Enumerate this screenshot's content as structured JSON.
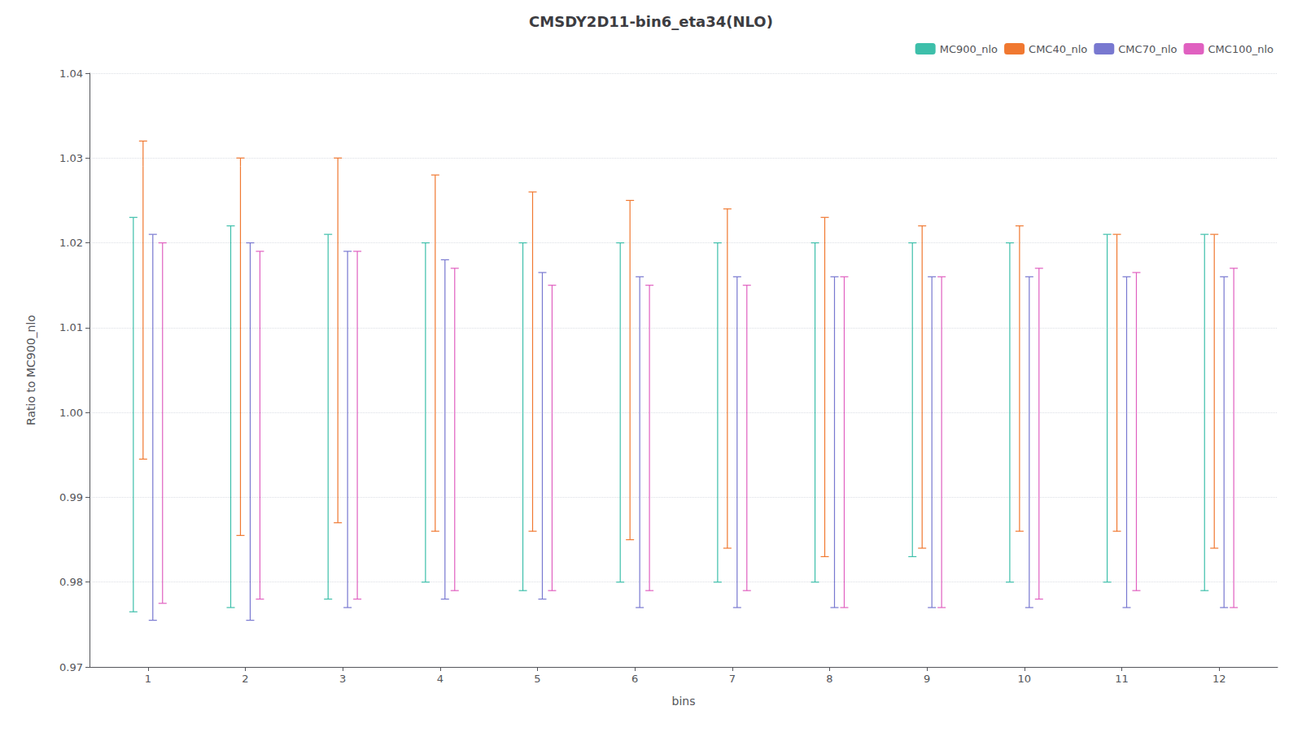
{
  "chart_data": {
    "type": "errorbar",
    "title": "CMSDY2D11-bin6_eta34(NLO)",
    "xlabel": "bins",
    "ylabel": "Ratio to MC900_nlo",
    "x": [
      1,
      2,
      3,
      4,
      5,
      6,
      7,
      8,
      9,
      10,
      11,
      12
    ],
    "xlim": [
      0.4,
      12.6
    ],
    "xticks": [
      1,
      2,
      3,
      4,
      5,
      6,
      7,
      8,
      9,
      10,
      11,
      12
    ],
    "ylim": [
      0.97,
      1.04
    ],
    "yticks": [
      0.97,
      0.98,
      0.99,
      {
        "value": 1,
        "label": "1.00"
      },
      1.01,
      1.02,
      1.03,
      1.04
    ],
    "grid": true,
    "legend": "upper right",
    "series": [
      {
        "name": "MC900_nlo",
        "color": "#3dbfaa",
        "values": [
          1.023,
          1.022,
          1.021,
          1.02,
          1.02,
          1.02,
          1.02,
          1.02,
          1.02,
          1.02,
          1.021,
          1.021
        ],
        "upper": [
          1.023,
          1.022,
          1.021,
          1.02,
          1.02,
          1.02,
          1.02,
          1.02,
          1.02,
          1.02,
          1.021,
          1.021
        ],
        "lower": [
          0.9765,
          0.977,
          0.978,
          0.98,
          0.979,
          0.98,
          0.98,
          0.98,
          0.983,
          0.98,
          0.98,
          0.979
        ]
      },
      {
        "name": "CMC40_nlo",
        "color": "#f07830",
        "values": [
          1.029,
          1.029,
          1.03,
          1.028,
          1.026,
          1.025,
          1.024,
          1.023,
          1.022,
          1.022,
          1.021,
          1.021
        ],
        "upper": [
          1.032,
          1.03,
          1.03,
          1.028,
          1.026,
          1.025,
          1.024,
          1.023,
          1.022,
          1.022,
          1.021,
          1.021
        ],
        "lower": [
          0.9945,
          0.9855,
          0.987,
          0.986,
          0.986,
          0.985,
          0.984,
          0.983,
          0.984,
          0.986,
          0.986,
          0.984
        ]
      },
      {
        "name": "CMC70_nlo",
        "color": "#7878d0",
        "values": [
          1.021,
          1.02,
          1.019,
          1.018,
          1.0165,
          1.016,
          1.016,
          1.016,
          1.016,
          1.016,
          1.016,
          1.016
        ],
        "upper": [
          1.021,
          1.02,
          1.019,
          1.018,
          1.0165,
          1.016,
          1.016,
          1.016,
          1.016,
          1.016,
          1.016,
          1.016
        ],
        "lower": [
          0.9755,
          0.9755,
          0.977,
          0.978,
          0.978,
          0.977,
          0.977,
          0.977,
          0.977,
          0.977,
          0.977,
          0.977
        ]
      },
      {
        "name": "CMC100_nlo",
        "color": "#e060c0",
        "values": [
          1.02,
          1.019,
          1.019,
          1.017,
          1.015,
          1.015,
          1.015,
          1.016,
          1.016,
          1.017,
          1.0165,
          1.017
        ],
        "upper": [
          1.02,
          1.019,
          1.019,
          1.017,
          1.015,
          1.015,
          1.015,
          1.016,
          1.016,
          1.017,
          1.0165,
          1.017
        ],
        "lower": [
          0.9775,
          0.978,
          0.978,
          0.979,
          0.979,
          0.979,
          0.979,
          0.977,
          0.977,
          0.978,
          0.979,
          0.977
        ]
      }
    ]
  }
}
